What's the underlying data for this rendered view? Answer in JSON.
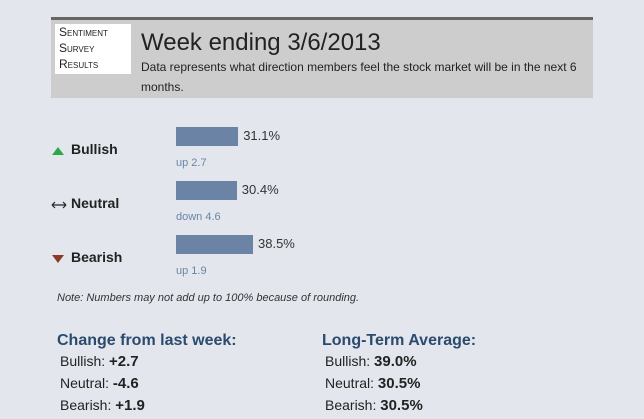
{
  "logo": [
    "Sentiment",
    "Survey",
    "Results"
  ],
  "chart_data": {
    "type": "bar",
    "title": "Week ending 3/6/2013",
    "subtitle": "Data represents what direction members feel the stock market will be in the next 6 months.",
    "categories": [
      "Bullish",
      "Neutral",
      "Bearish"
    ],
    "values": [
      31.1,
      30.4,
      38.5
    ],
    "value_labels": [
      "31.1%",
      "30.4%",
      "38.5%"
    ],
    "changes": [
      "up 2.7",
      "down 4.6",
      "up 1.9"
    ],
    "color": "#6b84a5",
    "note": "Note: Numbers may not add up to 100% because of rounding."
  },
  "change": {
    "title": "Change from last week:",
    "rows": [
      [
        "Bullish:",
        "+2.7"
      ],
      [
        "Neutral:",
        "-4.6"
      ],
      [
        "Bearish:",
        "+1.9"
      ]
    ]
  },
  "long_term": {
    "title": "Long-Term Average:",
    "rows": [
      [
        "Bullish:",
        "39.0%"
      ],
      [
        "Neutral:",
        "30.5%"
      ],
      [
        "Bearish:",
        "30.5%"
      ]
    ]
  }
}
